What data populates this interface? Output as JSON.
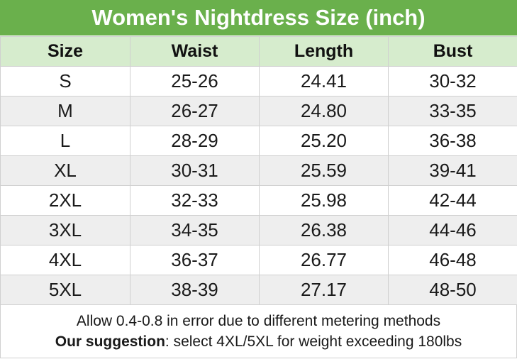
{
  "title": "Women's Nightdress Size (inch)",
  "colors": {
    "title_bg": "#6ab04c",
    "title_text": "#ffffff",
    "header_bg": "#d6eccd",
    "row_alt_bg": "#eeeeee",
    "row_bg": "#ffffff"
  },
  "table": {
    "headers": [
      "Size",
      "Waist",
      "Length",
      "Bust"
    ],
    "rows": [
      [
        "S",
        "25-26",
        "24.41",
        "30-32"
      ],
      [
        "M",
        "26-27",
        "24.80",
        "33-35"
      ],
      [
        "L",
        "28-29",
        "25.20",
        "36-38"
      ],
      [
        "XL",
        "30-31",
        "25.59",
        "39-41"
      ],
      [
        "2XL",
        "32-33",
        "25.98",
        "42-44"
      ],
      [
        "3XL",
        "34-35",
        "26.38",
        "44-46"
      ],
      [
        "4XL",
        "36-37",
        "26.77",
        "46-48"
      ],
      [
        "5XL",
        "38-39",
        "27.17",
        "48-50"
      ]
    ]
  },
  "notes": {
    "line1": "Allow 0.4-0.8 in error due to different metering methods",
    "suggestion_label": "Our suggestion",
    "suggestion_text": ": select 4XL/5XL for weight exceeding 180lbs"
  }
}
